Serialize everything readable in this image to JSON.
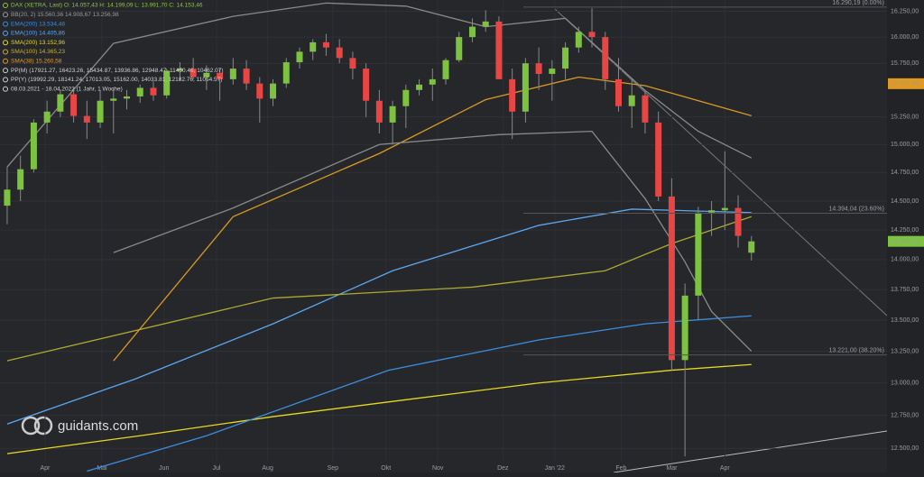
{
  "chart_data": {
    "type": "candlestick",
    "legend": [
      {
        "text": "DAX (XETRA, Last)  O: 14.057,43  H: 14.199,09  L: 13.991,70  C: 14.153,46",
        "color": "#8dc63f"
      },
      {
        "text": "BB(20, 2)  15.560,36  14.908,67  13.256,98",
        "color": "#9a9a9a"
      },
      {
        "text": "EMA(200)  13.534,48",
        "color": "#3a8ee0"
      },
      {
        "text": "EMA(100)  14.405,86",
        "color": "#5aa8f0"
      },
      {
        "text": "SMA(200)  13.152,96",
        "color": "#e8d820"
      },
      {
        "text": "SMA(100)  14.365,23",
        "color": "#c8b030"
      },
      {
        "text": "SMA(38)  15.260,58",
        "color": "#e09a20"
      },
      {
        "text": "PP(M)  (17921.27, 16423.26, 15434.87, 13936.86, 12948.47, 11450.46, 10462.07)",
        "color": "#d0d0d0"
      },
      {
        "text": "PP(Y)  (19992.29, 18141.24, 17013.05, 15162.00, 14033.81, 12182.76, 11054.57)",
        "color": "#d0d0d0"
      },
      {
        "text": "08.03.2021 - 18.04.2022 (1 Jahr, 1 Woche)",
        "color": "#d0d0d0"
      }
    ],
    "up_color": "#7dc241",
    "down_color": "#e84545",
    "candles": [
      [
        14460,
        14800,
        14300,
        14600
      ],
      [
        14600,
        14900,
        14500,
        14780
      ],
      [
        14780,
        15230,
        14750,
        15200
      ],
      [
        15200,
        15400,
        15100,
        15300
      ],
      [
        15300,
        15500,
        15250,
        15460
      ],
      [
        15460,
        15520,
        15200,
        15260
      ],
      [
        15260,
        15400,
        15050,
        15200
      ],
      [
        15200,
        15500,
        15150,
        15400
      ],
      [
        15400,
        15520,
        15100,
        15420
      ],
      [
        15420,
        15500,
        15320,
        15440
      ],
      [
        15440,
        15550,
        15380,
        15520
      ],
      [
        15520,
        15580,
        15400,
        15450
      ],
      [
        15450,
        15700,
        15420,
        15680
      ],
      [
        15680,
        15760,
        15590,
        15700
      ],
      [
        15700,
        15800,
        15600,
        15620
      ],
      [
        15620,
        15730,
        15500,
        15660
      ],
      [
        15660,
        15700,
        15400,
        15600
      ],
      [
        15600,
        15800,
        15550,
        15700
      ],
      [
        15700,
        15780,
        15500,
        15560
      ],
      [
        15560,
        15620,
        15200,
        15420
      ],
      [
        15420,
        15600,
        15350,
        15560
      ],
      [
        15560,
        15800,
        15520,
        15760
      ],
      [
        15760,
        15900,
        15700,
        15860
      ],
      [
        15860,
        15980,
        15780,
        15950
      ],
      [
        15950,
        16030,
        15820,
        15900
      ],
      [
        15900,
        15980,
        15750,
        15800
      ],
      [
        15800,
        15860,
        15600,
        15700
      ],
      [
        15700,
        15750,
        15250,
        15400
      ],
      [
        15400,
        15500,
        15100,
        15200
      ],
      [
        15200,
        15400,
        15000,
        15350
      ],
      [
        15350,
        15550,
        15150,
        15500
      ],
      [
        15500,
        15600,
        15450,
        15550
      ],
      [
        15550,
        15700,
        15400,
        15600
      ],
      [
        15600,
        15800,
        15550,
        15780
      ],
      [
        15780,
        16050,
        15760,
        16000
      ],
      [
        16000,
        16180,
        15950,
        16100
      ],
      [
        16100,
        16260,
        16050,
        16150
      ],
      [
        16150,
        16200,
        15600,
        15600
      ],
      [
        15600,
        15700,
        15050,
        15300
      ],
      [
        15300,
        15800,
        15200,
        15750
      ],
      [
        15750,
        15900,
        15500,
        15650
      ],
      [
        15650,
        15780,
        15400,
        15700
      ],
      [
        15700,
        15950,
        15600,
        15900
      ],
      [
        15900,
        16100,
        15850,
        16050
      ],
      [
        16050,
        16280,
        15900,
        16000
      ],
      [
        16000,
        16050,
        15500,
        15600
      ],
      [
        15600,
        15800,
        15300,
        15350
      ],
      [
        15350,
        15600,
        15150,
        15450
      ],
      [
        15450,
        15500,
        15100,
        15200
      ],
      [
        15200,
        15300,
        14500,
        14540
      ],
      [
        14540,
        14700,
        13100,
        13180
      ],
      [
        13180,
        13800,
        12440,
        13700
      ],
      [
        13700,
        14450,
        13500,
        14400
      ],
      [
        14400,
        14500,
        14200,
        14420
      ],
      [
        14420,
        14940,
        14250,
        14440
      ],
      [
        14440,
        14550,
        14100,
        14200
      ],
      [
        14057.43,
        14199.09,
        13991.7,
        14153.46
      ]
    ],
    "series": [
      {
        "name": "SMA(200)",
        "color": "#e8d820",
        "x": [
          0,
          10,
          20,
          30,
          40,
          50,
          56
        ],
        "values": [
          12460,
          12595,
          12740,
          12870,
          13000,
          13100,
          13145
        ]
      },
      {
        "name": "EMA(200)",
        "color": "#3a8ee0",
        "x": [
          6,
          15,
          28.7,
          40,
          48,
          56
        ],
        "values": [
          12330,
          12595,
          13100,
          13340,
          13470,
          13535
        ]
      },
      {
        "name": "EMA(100)",
        "color": "#5aa8f0",
        "x": [
          0,
          9.6,
          20,
          29,
          40,
          47,
          56
        ],
        "values": [
          12684,
          13030,
          13470,
          13906,
          14290,
          14430,
          14400
        ]
      },
      {
        "name": "SMA(100)",
        "color": "#b0a830",
        "x": [
          0,
          20,
          35,
          45,
          50,
          56
        ],
        "values": [
          13174,
          13680,
          13770,
          13906,
          14135,
          14365
        ]
      },
      {
        "name": "SMA(38)",
        "color": "#d89a20",
        "x": [
          8,
          17,
          28,
          36,
          43,
          48,
          56
        ],
        "values": [
          13174,
          14365,
          14920,
          15410,
          15620,
          15540,
          15262
        ]
      },
      {
        "name": "BB(20, 2)",
        "color": "#8a8a8a",
        "x": [
          0,
          8,
          17,
          24,
          30,
          36,
          42,
          48,
          52,
          56
        ],
        "values": [
          14800,
          15940,
          16200,
          16330,
          16300,
          16100,
          16181,
          15495,
          15120,
          14880
        ]
      },
      {
        "name": "BB(20, 2)",
        "color": "#8a8a8a",
        "x": [
          8,
          17,
          28,
          37,
          44,
          48,
          51,
          53,
          56
        ],
        "values": [
          14058,
          14440,
          15001,
          15090,
          15120,
          14521,
          13980,
          13570,
          13250
        ]
      }
    ],
    "log_scale": true,
    "ylim": [
      12320,
      16360
    ],
    "xlim": [
      -0.54,
      66.2
    ],
    "yticks": [
      {
        "value": 16250,
        "label": "16.250,00"
      },
      {
        "value": 16000,
        "label": "16.000,00"
      },
      {
        "value": 15750,
        "label": "15.750,00"
      },
      {
        "value": 15250,
        "label": "15.250,00"
      },
      {
        "value": 15000,
        "label": "15.000,00"
      },
      {
        "value": 14750,
        "label": "14.750,00"
      },
      {
        "value": 14500,
        "label": "14.500,00"
      },
      {
        "value": 14250,
        "label": "14.250,00"
      },
      {
        "value": 14000,
        "label": "14.000,00"
      },
      {
        "value": 13750,
        "label": "13.750,00"
      },
      {
        "value": 13500,
        "label": "13.500,00"
      },
      {
        "value": 13250,
        "label": "13.250,00"
      },
      {
        "value": 13000,
        "label": "13.000,00"
      },
      {
        "value": 12750,
        "label": "12.750,00"
      },
      {
        "value": 12500,
        "label": "12.500,00"
      }
    ],
    "xticks": [
      {
        "value": 2.85,
        "label": "Apr"
      },
      {
        "value": 7.13,
        "label": "Mai"
      },
      {
        "value": 11.8,
        "label": "Jun"
      },
      {
        "value": 15.75,
        "label": "Jul"
      },
      {
        "value": 19.6,
        "label": "Aug"
      },
      {
        "value": 24.5,
        "label": "Sep"
      },
      {
        "value": 28.5,
        "label": "Okt"
      },
      {
        "value": 32.4,
        "label": "Nov"
      },
      {
        "value": 37.3,
        "label": "Dez"
      },
      {
        "value": 41.2,
        "label": "Jan '22"
      },
      {
        "value": 46.2,
        "label": "Feb"
      },
      {
        "value": 50,
        "label": "Mar"
      },
      {
        "value": 54,
        "label": "Apr"
      }
    ],
    "grid": true,
    "annotations": [
      {
        "value": 16290.19,
        "label": "16.290,19 (0.00%)"
      },
      {
        "value": 14394.04,
        "label": "14.394,04 (23.60%)"
      },
      {
        "value": 13221,
        "label": "13.221,00 (38.20%)"
      }
    ],
    "price_tags": [
      {
        "value": 15558.44,
        "label": "15.558,44",
        "color": "#e09a20"
      },
      {
        "value": 14153.46,
        "label": "14.153,46",
        "color": "#7dc241"
      }
    ],
    "logo": "guidants.com"
  }
}
